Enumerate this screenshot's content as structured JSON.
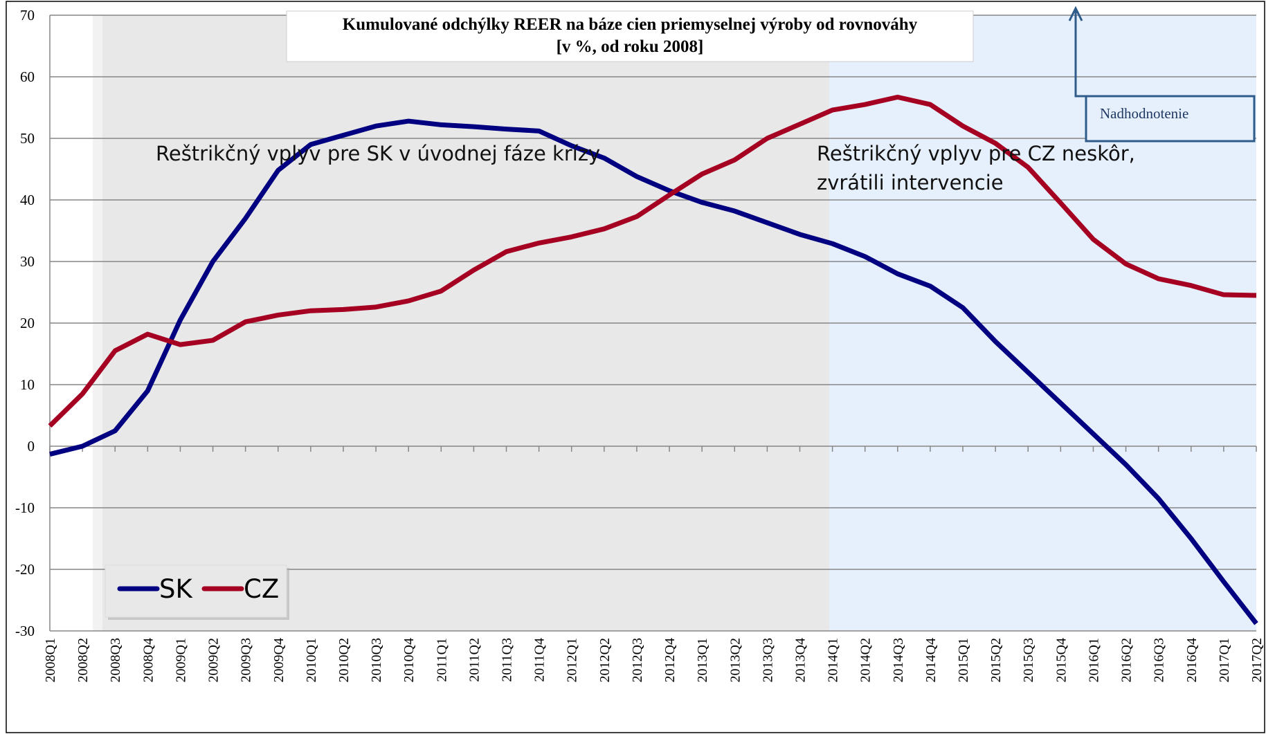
{
  "chart_data": {
    "type": "line",
    "title": "Kumulované odchýlky REER na báze cien priemyselnej výroby od rovnováhy",
    "subtitle": "[v %, od roku 2008]",
    "annotations": [
      "Reštrikčný vplyv pre SK v úvodnej fáze krízy",
      "Reštrikčný vplyv pre CZ neskôr,",
      "zvrátili intervencie",
      "Nadhodnotenie"
    ],
    "categories": [
      "2008Q1",
      "2008Q2",
      "2008Q3",
      "2008Q4",
      "2009Q1",
      "2009Q2",
      "2009Q3",
      "2009Q4",
      "2010Q1",
      "2010Q2",
      "2010Q3",
      "2010Q4",
      "2011Q1",
      "2011Q2",
      "2011Q3",
      "2011Q4",
      "2012Q1",
      "2012Q2",
      "2012Q3",
      "2012Q4",
      "2013Q1",
      "2013Q2",
      "2013Q3",
      "2013Q4",
      "2014Q1",
      "2014Q2",
      "2014Q3",
      "2014Q4",
      "2015Q1",
      "2015Q2",
      "2015Q3",
      "2015Q4",
      "2016Q1",
      "2016Q2",
      "2016Q3",
      "2016Q4",
      "2017Q1",
      "2017Q2"
    ],
    "series": [
      {
        "name": "SK",
        "color": "#000080",
        "values": [
          -1.3,
          0,
          2.5,
          9,
          20.5,
          30,
          37,
          44.8,
          49,
          50.5,
          52,
          52.8,
          52.2,
          51.9,
          51.5,
          51.2,
          48.8,
          46.8,
          43.8,
          41.5,
          39.6,
          38.2,
          36.3,
          34.4,
          32.9,
          30.8,
          28,
          26,
          22.5,
          17,
          12,
          7,
          2,
          -3,
          -8.5,
          -15,
          -22,
          -28.8
        ]
      },
      {
        "name": "CZ",
        "color": "#a50021",
        "values": [
          3.3,
          8.5,
          15.5,
          18.2,
          16.5,
          17.2,
          20.2,
          21.3,
          22,
          22.2,
          22.6,
          23.6,
          25.2,
          28.6,
          31.6,
          33,
          34,
          35.3,
          37.3,
          40.8,
          44.2,
          46.5,
          50,
          52.3,
          54.6,
          55.5,
          56.7,
          55.5,
          52,
          49.2,
          45.3,
          39.5,
          33.6,
          29.6,
          27.2,
          26.1,
          24.6,
          24.5
        ]
      }
    ],
    "ylim": [
      -30,
      70
    ],
    "yticks": [
      -30,
      -20,
      -10,
      0,
      10,
      20,
      30,
      40,
      50,
      60,
      70
    ],
    "grid": true
  }
}
